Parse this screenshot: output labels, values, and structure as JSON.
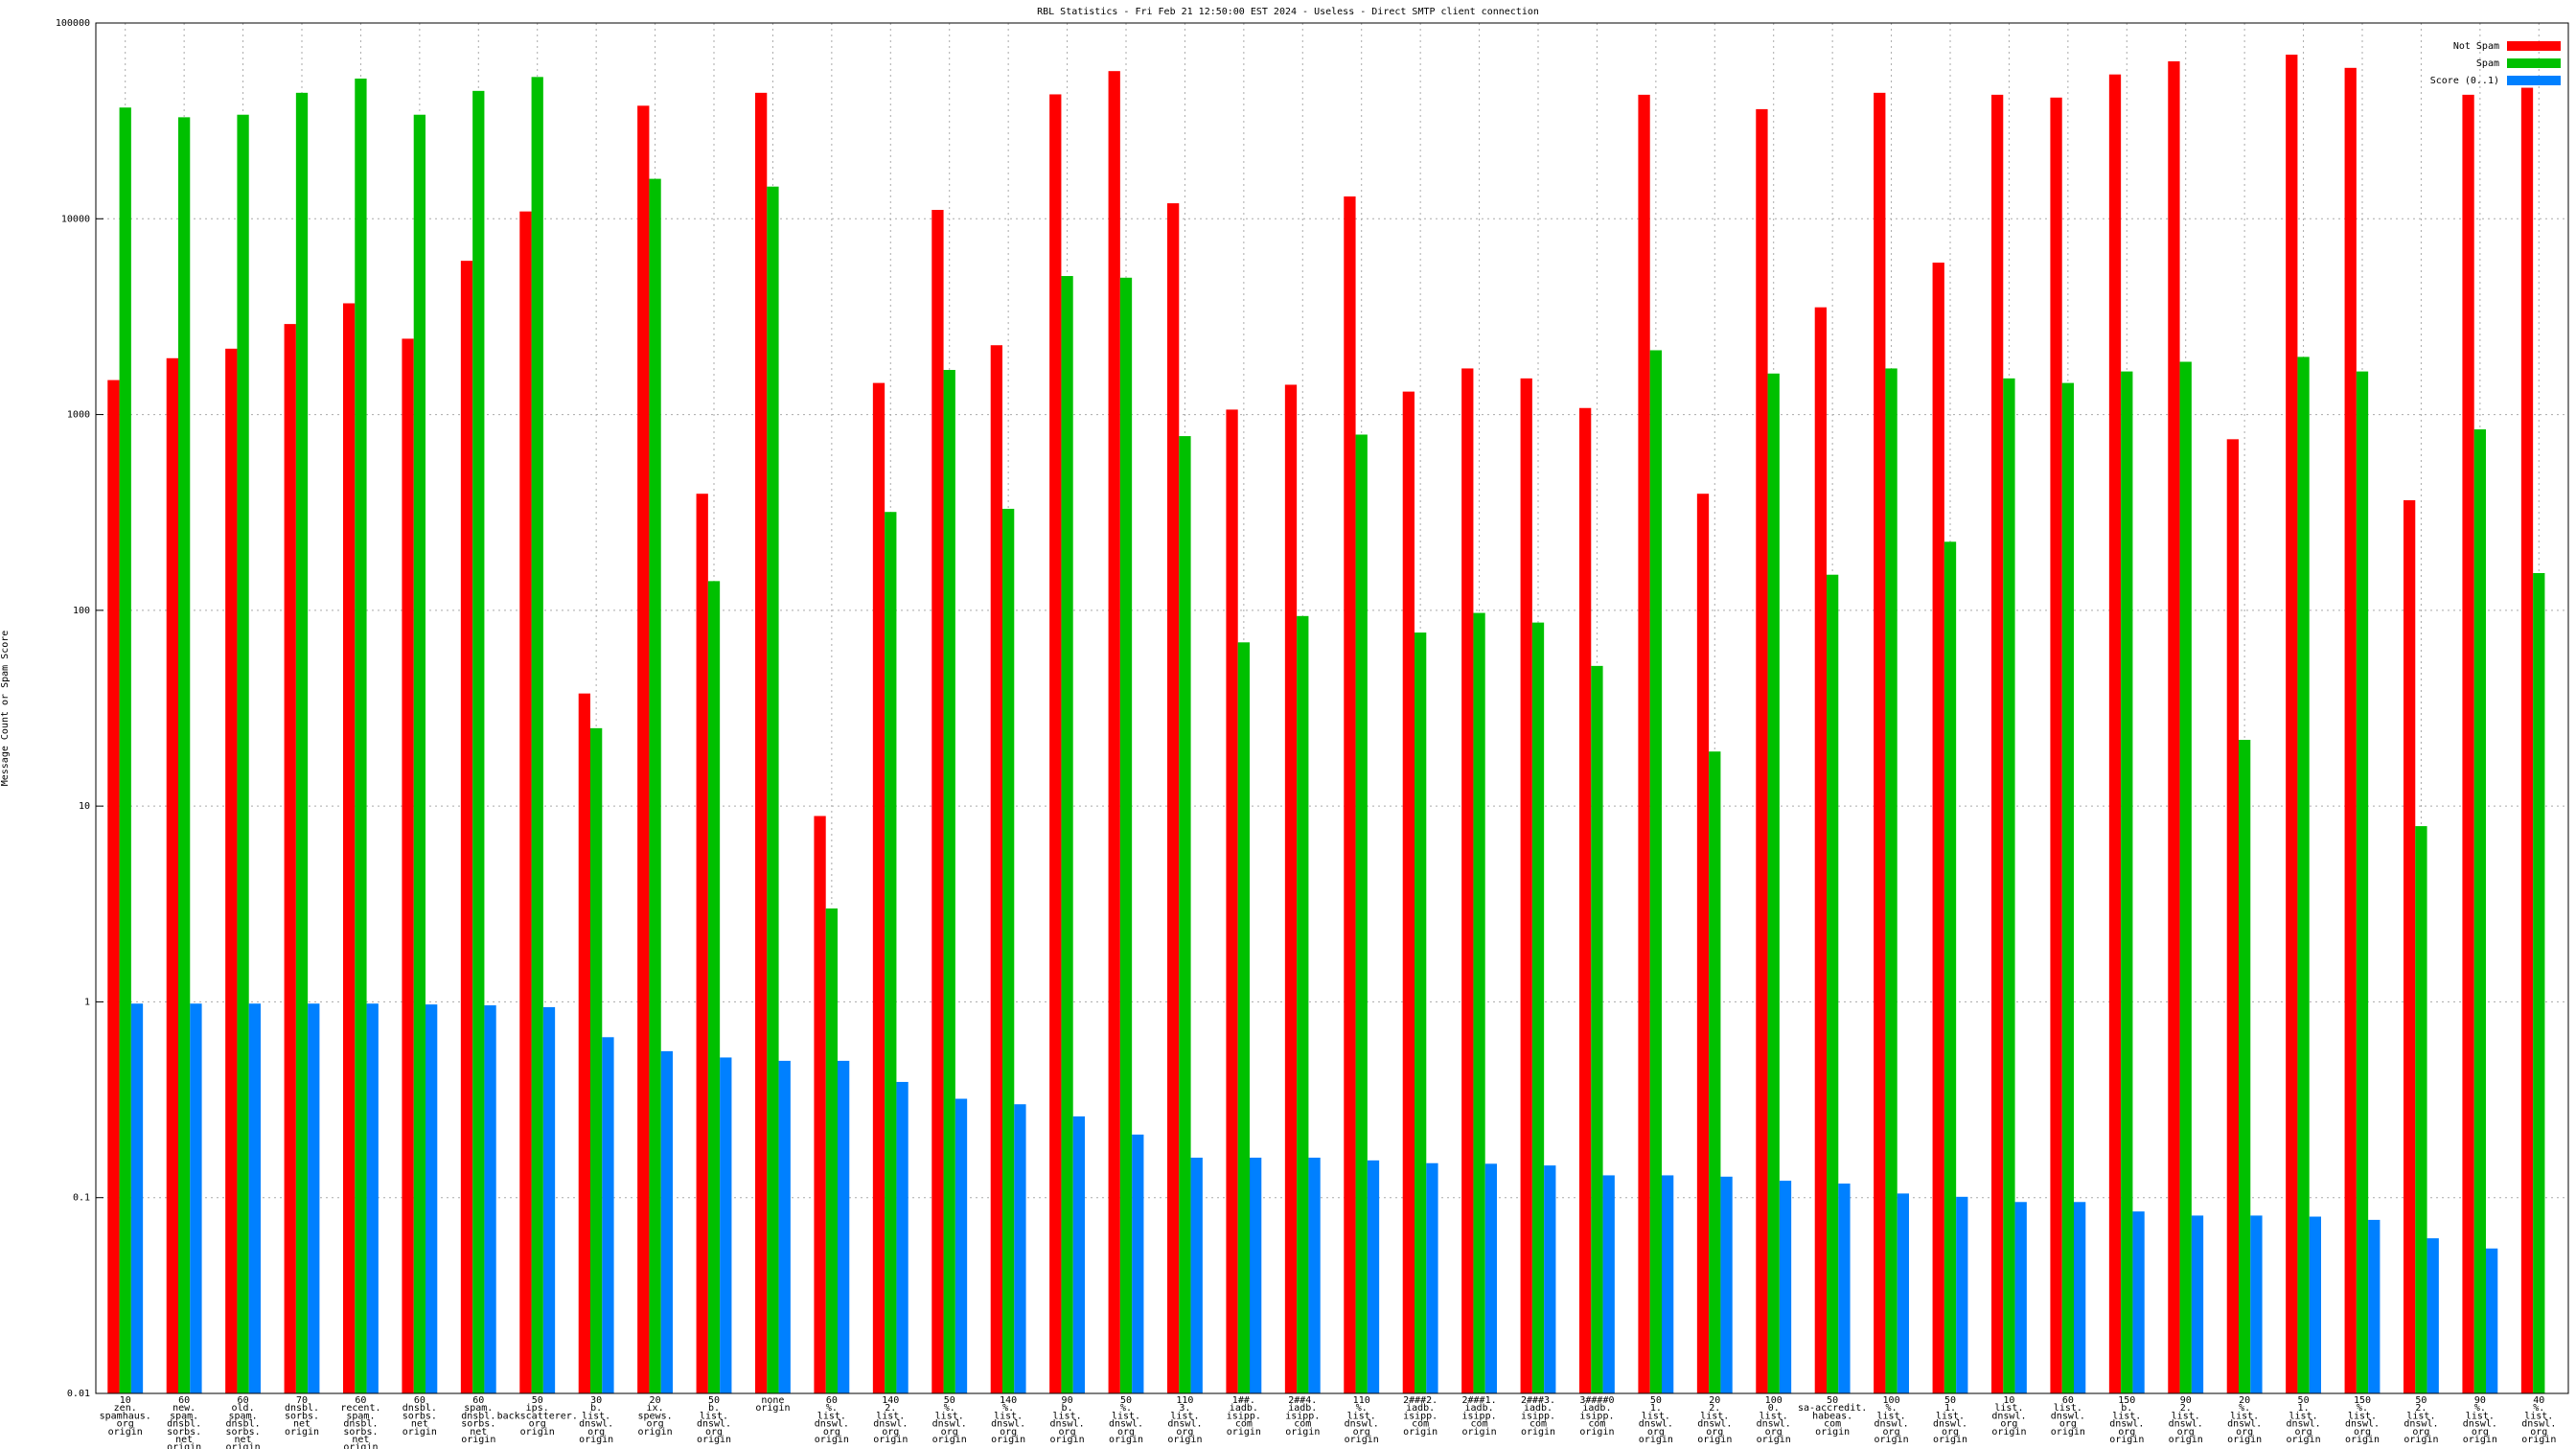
{
  "chart_data": {
    "type": "bar",
    "title": "RBL Statistics - Fri Feb 21 12:50:00 EST 2024 - Useless - Direct SMTP client connection",
    "y_label": "Message Count or Spam Score",
    "log_y": true,
    "grid": true,
    "legend": "top-right",
    "ylim": [
      0.01,
      100000
    ],
    "yticks": [
      0.01,
      0.1,
      1,
      10,
      100,
      1000,
      10000,
      100000
    ],
    "categories": [
      "10\nzen.\nspamhaus.\norg\norigin",
      "60\nnew.\nspam.\ndnsbl.\nsorbs.\nnet\norigin",
      "60\nold.\nspam.\ndnsbl.\nsorbs.\nnet\norigin",
      "70\ndnsbl.\nsorbs.\nnet\norigin",
      "60\nrecent.\nspam.\ndnsbl.\nsorbs.\nnet\norigin",
      "60\ndnsbl.\nsorbs.\nnet\norigin",
      "60\nspam.\ndnsbl.\nsorbs.\nnet\norigin",
      "50\nips.\nbackscatterer.\norg\norigin",
      "30\nb.\nlist.\ndnswl.\norg\norigin",
      "20\nix.\nspews.\norg\norigin",
      "50\nb.\nlist.\ndnswl.\norg\norigin",
      "none\norigin",
      "60\n%.\nlist.\ndnswl.\norg\norigin",
      "140\n2.\nlist.\ndnswl.\norg\norigin",
      "50\n%.\nlist.\ndnswl.\norg\norigin",
      "140\n%.\nlist.\ndnswl.\norg\norigin",
      "90\nb.\nlist.\ndnswl.\norg\norigin",
      "50\n%.\nlist.\ndnswl.\norg\norigin",
      "110\n3.\nlist.\ndnswl.\norg\norigin",
      "1##.\niadb.\nisipp.\ncom\norigin",
      "2##4.\niadb.\nisipp.\ncom\norigin",
      "110\n%.\nlist.\ndnswl.\norg\norigin",
      "2###2.\niadb.\nisipp.\ncom\norigin",
      "2###1.\niadb.\nisipp.\ncom\norigin",
      "2###3.\niadb.\nisipp.\ncom\norigin",
      "3####0\niadb.\nisipp.\ncom\norigin",
      "50\n1.\nlist.\ndnswl.\norg\norigin",
      "20\n2.\nlist.\ndnswl.\norg\norigin",
      "100\n0.\nlist.\ndnswl.\norg\norigin",
      "50\nsa-accredit.\nhabeas.\ncom\norigin",
      "100\n%.\nlist.\ndnswl.\norg\norigin",
      "50\n1.\nlist.\ndnswl.\norg\norigin",
      "10\nlist.\ndnswl.\norg\norigin",
      "60\nlist.\ndnswl.\norg\norigin",
      "150\nb.\nlist.\ndnswl.\norg\norigin",
      "90\n2.\nlist.\ndnswl.\norg\norigin",
      "20\n%.\nlist.\ndnswl.\norg\norigin",
      "50\n1.\nlist.\ndnswl.\norg\norigin",
      "150\n%.\nlist.\ndnswl.\norg\norigin",
      "50\n2.\nlist.\ndnswl.\norg\norigin",
      "90\n%.\nlist.\ndnswl.\norg\norigin",
      "40\n%.\nlist.\ndnswl.\norg\norigin"
    ],
    "series": [
      {
        "name": "Not Spam",
        "color": "#ff0000",
        "values": [
          1500,
          1940,
          2170,
          2900,
          3700,
          2440,
          6100,
          10900,
          37.6,
          37800,
          394,
          44000,
          8.9,
          1450,
          11100,
          2260,
          43200,
          56800,
          12000,
          1060,
          1420,
          13000,
          1310,
          1720,
          1530,
          1080,
          43000,
          394,
          36300,
          3530,
          44000,
          5970,
          43000,
          41600,
          54600,
          63700,
          748,
          68900,
          59000,
          365,
          43000,
          46700
        ]
      },
      {
        "name": "Spam",
        "color": "#00c000",
        "values": [
          37000,
          33000,
          34000,
          44000,
          52000,
          34000,
          45000,
          53000,
          25,
          16000,
          141,
          14600,
          3.0,
          318,
          1690,
          330,
          5100,
          5000,
          776,
          68.6,
          93.5,
          790,
          77,
          97,
          86.6,
          52,
          2130,
          19,
          1620,
          152,
          1720,
          224,
          1530,
          1450,
          1660,
          1860,
          21.8,
          1970,
          1660,
          7.9,
          840,
          155
        ]
      },
      {
        "name": "Score (0..1)",
        "color": "#0080ff",
        "values": [
          0.98,
          0.98,
          0.98,
          0.98,
          0.98,
          0.97,
          0.96,
          0.94,
          0.66,
          0.56,
          0.52,
          0.5,
          0.5,
          0.39,
          0.32,
          0.3,
          0.26,
          0.21,
          0.16,
          0.16,
          0.16,
          0.155,
          0.15,
          0.149,
          0.146,
          0.13,
          0.13,
          0.128,
          0.122,
          0.118,
          0.105,
          0.101,
          0.095,
          0.095,
          0.085,
          0.081,
          0.081,
          0.08,
          0.077,
          0.062,
          0.055,
          null
        ]
      }
    ]
  }
}
